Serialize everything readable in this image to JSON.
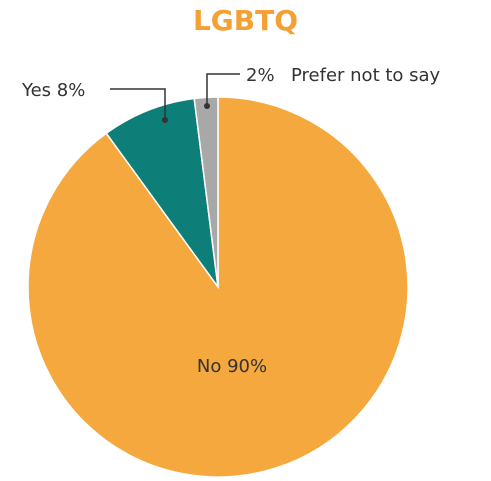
{
  "chart_data": {
    "type": "pie",
    "title": "LGBTQ",
    "slices": [
      {
        "label": "No",
        "value": 90,
        "color": "#f4a83d"
      },
      {
        "label": "Yes",
        "value": 8,
        "color": "#0e7f78"
      },
      {
        "label": "Prefer not to say",
        "value": 2,
        "color": "#a8a8a8"
      }
    ],
    "data_labels": {
      "no": "No 90%",
      "yes": "Yes 8%",
      "prefer_pct": "2%",
      "prefer_text": "Prefer not to say"
    },
    "title_color": "#f5a033"
  }
}
